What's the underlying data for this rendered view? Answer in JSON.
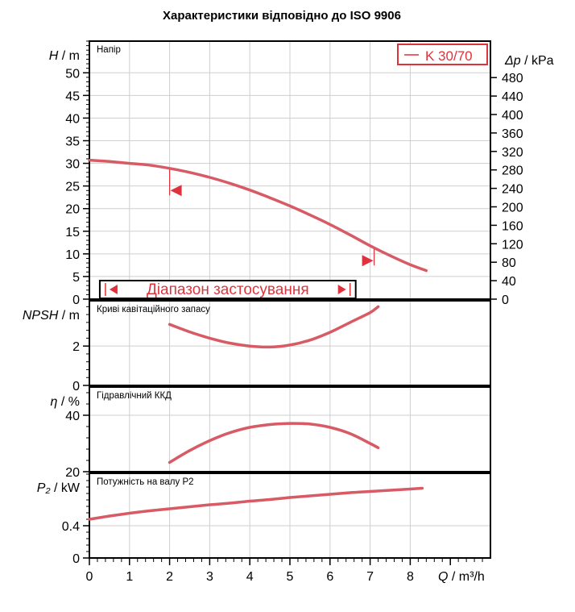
{
  "title": "Характеристики відповідно до ISO 9906",
  "legend": {
    "label": "K 30/70"
  },
  "range_label": "Діапазон застосування",
  "colors": {
    "curve": "#d85a64",
    "accent": "#e0323c",
    "axis": "#000000"
  },
  "chart_data": [
    {
      "type": "line",
      "panel": "Напір",
      "ylabel_sym": "H",
      "ylabel_unit": "m",
      "ylabel_right_sym": "Δp",
      "ylabel_right_unit": "kPa",
      "ylim": [
        0,
        57
      ],
      "yticks": [
        0,
        5,
        10,
        15,
        20,
        25,
        30,
        35,
        40,
        45,
        50
      ],
      "right_ylim_kPa": [
        0,
        559
      ],
      "right_yticks": [
        0,
        40,
        80,
        120,
        160,
        200,
        240,
        280,
        320,
        360,
        400,
        440,
        480
      ],
      "operating_range": [
        0.4,
        6.5
      ],
      "markers": [
        {
          "x": 2.0,
          "y": 24,
          "dir": "left"
        },
        {
          "x": 7.1,
          "y": 8.5,
          "dir": "right"
        }
      ],
      "series": [
        {
          "name": "K 30/70",
          "x": [
            0,
            0.5,
            1,
            1.5,
            2,
            2.5,
            3,
            3.5,
            4,
            4.5,
            5,
            5.5,
            6,
            6.5,
            7,
            7.5,
            8,
            8.4
          ],
          "values": [
            30.7,
            30.4,
            30.0,
            29.6,
            28.9,
            28.0,
            26.9,
            25.6,
            24.1,
            22.4,
            20.6,
            18.6,
            16.5,
            14.2,
            11.8,
            9.6,
            7.6,
            6.3
          ]
        }
      ]
    },
    {
      "type": "line",
      "panel": "Криві кавітаційного запасу",
      "ylabel_sym": "NPSH",
      "ylabel_unit": "m",
      "ylim": [
        0,
        4.3
      ],
      "yticks": [
        0,
        2
      ],
      "series": [
        {
          "x": [
            2,
            2.5,
            3,
            3.5,
            4,
            4.5,
            5,
            5.5,
            6,
            6.5,
            7,
            7.2
          ],
          "values": [
            3.1,
            2.72,
            2.4,
            2.15,
            2.0,
            1.95,
            2.05,
            2.3,
            2.7,
            3.2,
            3.7,
            4.0
          ]
        }
      ]
    },
    {
      "type": "line",
      "panel": "Гідравлічний ККД",
      "ylabel_sym": "η",
      "ylabel_unit": "%",
      "ylim": [
        20,
        50
      ],
      "yticks": [
        20,
        40
      ],
      "series": [
        {
          "x": [
            2,
            2.5,
            3,
            3.5,
            4,
            4.5,
            5,
            5.5,
            6,
            6.5,
            7,
            7.2
          ],
          "values": [
            23.3,
            27.5,
            31.0,
            33.8,
            35.7,
            36.7,
            37.1,
            36.9,
            35.7,
            33.5,
            30.0,
            28.5
          ]
        }
      ]
    },
    {
      "type": "line",
      "panel": "Потужність на валу P2",
      "ylabel_sym": "P₂",
      "ylabel_unit": "kW",
      "ylim": [
        0,
        1.05
      ],
      "yticks": [
        0,
        0.4
      ],
      "series": [
        {
          "x": [
            0,
            0.5,
            1,
            1.5,
            2,
            2.5,
            3,
            3.5,
            4,
            4.5,
            5,
            5.5,
            6,
            6.5,
            7,
            7.5,
            8,
            8.3
          ],
          "values": [
            0.48,
            0.52,
            0.555,
            0.585,
            0.61,
            0.635,
            0.66,
            0.68,
            0.705,
            0.725,
            0.75,
            0.77,
            0.79,
            0.81,
            0.825,
            0.84,
            0.855,
            0.865
          ]
        }
      ]
    }
  ],
  "xaxis": {
    "sym": "Q",
    "unit": "m³/h",
    "xlim": [
      0,
      10
    ],
    "xticks": [
      0,
      1,
      2,
      3,
      4,
      5,
      6,
      7,
      8
    ]
  }
}
